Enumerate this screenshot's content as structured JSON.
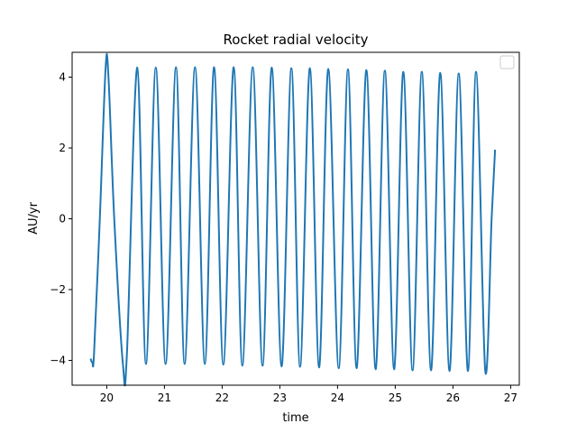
{
  "chart_data": {
    "type": "line",
    "title": "Rocket radial velocity",
    "xlabel": "time",
    "ylabel": "AU/yr",
    "xlim": [
      19.4,
      27.15
    ],
    "ylim": [
      -4.7,
      4.7
    ],
    "xticks": [
      20,
      21,
      22,
      23,
      24,
      25,
      26,
      27
    ],
    "yticks": [
      -4,
      -2,
      0,
      2,
      4
    ],
    "xtick_labels": [
      "20",
      "21",
      "22",
      "23",
      "24",
      "25",
      "26",
      "27"
    ],
    "ytick_labels": [
      "−4",
      "−2",
      "0",
      "2",
      "4"
    ],
    "grid": false,
    "legend": {
      "placement": "top-right",
      "entries": []
    },
    "colors": {
      "line": "#1f77b4",
      "axes": "#000000",
      "background": "#ffffff"
    },
    "series": [
      {
        "line_color": "#1f77b4",
        "x": [
          19.72,
          19.75,
          19.78,
          19.88,
          19.98,
          20.03,
          20.13,
          20.28,
          20.35,
          20.53,
          20.68,
          20.85,
          21.02,
          21.2,
          21.35,
          21.53,
          21.7,
          21.86,
          22.02,
          22.2,
          22.35,
          22.53,
          22.7,
          22.86,
          23.03,
          23.2,
          23.35,
          23.52,
          23.68,
          23.84,
          24.02,
          24.18,
          24.33,
          24.5,
          24.66,
          24.82,
          24.98,
          25.14,
          25.3,
          25.46,
          25.62,
          25.78,
          25.94,
          26.1,
          26.26,
          26.4,
          26.56,
          26.67,
          26.73
        ],
        "y": [
          -3.95,
          -4.05,
          -3.8,
          0.0,
          4.25,
          4.0,
          0.0,
          -4.1,
          -3.8,
          4.27,
          -4.1,
          4.27,
          -4.1,
          4.28,
          -4.1,
          4.28,
          -4.1,
          4.28,
          -4.12,
          4.28,
          -4.15,
          4.28,
          -4.15,
          4.27,
          -4.17,
          4.25,
          -4.18,
          4.25,
          -4.2,
          4.23,
          -4.22,
          4.22,
          -4.22,
          4.2,
          -4.25,
          4.18,
          -4.25,
          4.15,
          -4.28,
          4.15,
          -4.28,
          4.12,
          -4.3,
          4.1,
          -4.3,
          4.15,
          -4.3,
          0.0,
          1.95
        ]
      }
    ]
  }
}
